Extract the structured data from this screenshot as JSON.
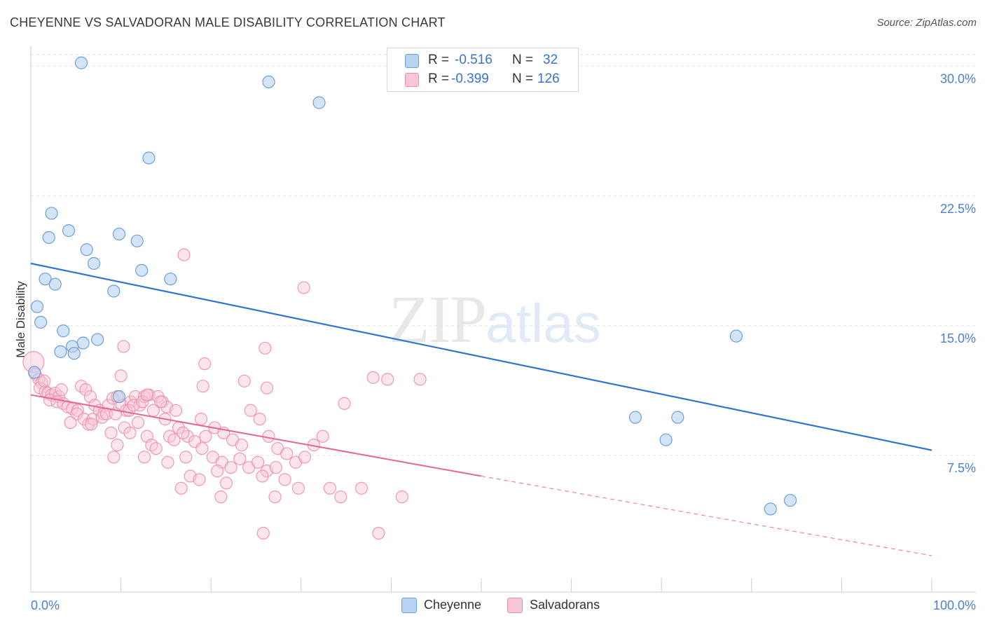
{
  "title": "CHEYENNE VS SALVADORAN MALE DISABILITY CORRELATION CHART",
  "source": "Source: ZipAtlas.com",
  "watermark": {
    "zip": "ZIP",
    "atlas": "atlas"
  },
  "colors": {
    "cheyenne_fill": "#b8d2f2",
    "cheyenne_stroke": "#6d9fd8",
    "cheyenne_line": "#2f74d0",
    "salvadoran_fill": "#f8c6d6",
    "salvadoran_stroke": "#ec8fab",
    "salvadoran_line": "#e8668e",
    "tick_text": "#4a7fd0"
  },
  "legend": {
    "rows": [
      {
        "r_label": "R = ",
        "r_value": "-0.516",
        "n_label": "N = ",
        "n_value": "32"
      },
      {
        "r_label": "R = ",
        "r_value": "-0.399",
        "n_label": "N = ",
        "n_value": "126"
      }
    ]
  },
  "bottom_legend": [
    "Cheyenne",
    "Salvadorans"
  ],
  "chart_data": {
    "type": "scatter",
    "title": "CHEYENNE VS SALVADORAN MALE DISABILITY CORRELATION CHART",
    "xlabel": "",
    "ylabel": "Male Disability",
    "xlim": [
      0,
      100
    ],
    "ylim": [
      0,
      31
    ],
    "x_tick_labels": [
      "0.0%",
      "100.0%"
    ],
    "y_ticks": [
      7.5,
      15.0,
      22.5,
      30.0
    ],
    "y_tick_labels": [
      "7.5%",
      "15.0%",
      "22.5%",
      "30.0%"
    ],
    "grid": "horizontal dashed",
    "legend_placement": "top-center",
    "series": [
      {
        "name": "Cheyenne",
        "r": -0.516,
        "n": 32,
        "trend": {
          "x": [
            0,
            100
          ],
          "y": [
            18.6,
            7.8
          ]
        },
        "points": [
          [
            5.6,
            30.2
          ],
          [
            26.4,
            29.1
          ],
          [
            32.0,
            27.9
          ],
          [
            13.1,
            24.7
          ],
          [
            2.3,
            21.5
          ],
          [
            4.2,
            20.5
          ],
          [
            9.8,
            20.3
          ],
          [
            2.0,
            20.1
          ],
          [
            11.8,
            19.9
          ],
          [
            6.2,
            19.4
          ],
          [
            7.0,
            18.6
          ],
          [
            12.3,
            18.2
          ],
          [
            15.5,
            17.7
          ],
          [
            1.6,
            17.7
          ],
          [
            2.7,
            17.4
          ],
          [
            9.2,
            17.0
          ],
          [
            0.7,
            16.1
          ],
          [
            1.1,
            15.2
          ],
          [
            3.6,
            14.7
          ],
          [
            7.4,
            14.2
          ],
          [
            5.8,
            14.0
          ],
          [
            4.6,
            13.8
          ],
          [
            3.3,
            13.5
          ],
          [
            4.8,
            13.4
          ],
          [
            0.4,
            12.3
          ],
          [
            9.8,
            10.9
          ],
          [
            78.3,
            14.4
          ],
          [
            67.1,
            9.7
          ],
          [
            71.8,
            9.7
          ],
          [
            70.5,
            8.4
          ],
          [
            84.3,
            4.9
          ],
          [
            82.1,
            4.4
          ]
        ]
      },
      {
        "name": "Salvadorans",
        "r": -0.399,
        "n": 126,
        "trend": {
          "x": [
            0,
            50
          ],
          "y": [
            11.0,
            6.3
          ]
        },
        "trend_dashed": {
          "x": [
            50,
            100
          ],
          "y": [
            6.3,
            1.7
          ]
        },
        "points": [
          [
            0.3,
            12.9
          ],
          [
            0.5,
            12.2
          ],
          [
            0.9,
            11.9
          ],
          [
            1.2,
            11.7
          ],
          [
            1.0,
            11.4
          ],
          [
            1.6,
            11.2
          ],
          [
            1.9,
            11.1
          ],
          [
            2.3,
            11.0
          ],
          [
            2.7,
            11.1
          ],
          [
            3.1,
            10.9
          ],
          [
            1.5,
            11.8
          ],
          [
            2.1,
            10.7
          ],
          [
            2.9,
            10.6
          ],
          [
            3.6,
            10.5
          ],
          [
            4.1,
            10.3
          ],
          [
            4.6,
            10.2
          ],
          [
            3.4,
            11.3
          ],
          [
            5.2,
            10.1
          ],
          [
            5.6,
            11.5
          ],
          [
            6.1,
            11.3
          ],
          [
            6.6,
            10.9
          ],
          [
            7.1,
            10.4
          ],
          [
            7.6,
            10.1
          ],
          [
            8.1,
            9.9
          ],
          [
            8.6,
            10.4
          ],
          [
            9.1,
            10.8
          ],
          [
            9.6,
            10.9
          ],
          [
            10.1,
            10.4
          ],
          [
            10.6,
            10.1
          ],
          [
            11.1,
            10.6
          ],
          [
            11.6,
            10.9
          ],
          [
            12.1,
            10.4
          ],
          [
            12.6,
            10.9
          ],
          [
            13.1,
            11.0
          ],
          [
            14.1,
            10.9
          ],
          [
            14.6,
            10.6
          ],
          [
            15.1,
            10.3
          ],
          [
            16.1,
            10.1
          ],
          [
            5.1,
            9.9
          ],
          [
            5.9,
            9.6
          ],
          [
            6.4,
            9.3
          ],
          [
            6.9,
            9.6
          ],
          [
            7.9,
            9.7
          ],
          [
            8.4,
            9.9
          ],
          [
            9.4,
            9.9
          ],
          [
            10.9,
            10.1
          ],
          [
            11.4,
            10.4
          ],
          [
            12.4,
            10.6
          ],
          [
            13.6,
            10.1
          ],
          [
            14.4,
            10.6
          ],
          [
            4.4,
            9.4
          ],
          [
            6.7,
            9.3
          ],
          [
            8.9,
            8.8
          ],
          [
            10.4,
            9.1
          ],
          [
            11.9,
            9.4
          ],
          [
            12.9,
            8.6
          ],
          [
            14.9,
            9.6
          ],
          [
            15.4,
            8.6
          ],
          [
            16.4,
            9.1
          ],
          [
            17.4,
            8.6
          ],
          [
            9.6,
            8.1
          ],
          [
            11.0,
            8.8
          ],
          [
            13.4,
            8.1
          ],
          [
            15.9,
            8.4
          ],
          [
            16.9,
            8.8
          ],
          [
            18.9,
            9.6
          ],
          [
            19.4,
            8.6
          ],
          [
            20.4,
            9.1
          ],
          [
            21.4,
            8.8
          ],
          [
            22.4,
            8.4
          ],
          [
            23.4,
            8.1
          ],
          [
            24.4,
            10.1
          ],
          [
            25.4,
            9.6
          ],
          [
            26.4,
            8.6
          ],
          [
            27.4,
            7.9
          ],
          [
            28.4,
            7.6
          ],
          [
            29.4,
            7.1
          ],
          [
            30.4,
            7.4
          ],
          [
            31.4,
            8.1
          ],
          [
            32.4,
            8.6
          ],
          [
            9.2,
            7.4
          ],
          [
            12.6,
            7.4
          ],
          [
            13.9,
            7.9
          ],
          [
            15.2,
            7.1
          ],
          [
            17.2,
            7.4
          ],
          [
            18.2,
            8.3
          ],
          [
            19.0,
            7.9
          ],
          [
            20.2,
            7.4
          ],
          [
            21.2,
            7.1
          ],
          [
            22.2,
            6.8
          ],
          [
            23.2,
            7.3
          ],
          [
            24.2,
            6.8
          ],
          [
            25.2,
            7.1
          ],
          [
            26.2,
            6.6
          ],
          [
            27.2,
            6.8
          ],
          [
            17.7,
            6.3
          ],
          [
            18.7,
            6.1
          ],
          [
            20.7,
            6.6
          ],
          [
            21.7,
            5.9
          ],
          [
            25.7,
            6.3
          ],
          [
            28.2,
            6.1
          ],
          [
            29.7,
            5.6
          ],
          [
            33.2,
            5.6
          ],
          [
            34.4,
            5.1
          ],
          [
            16.7,
            5.6
          ],
          [
            21.1,
            5.1
          ],
          [
            27.1,
            5.1
          ],
          [
            36.7,
            5.6
          ],
          [
            41.2,
            5.1
          ],
          [
            25.8,
            3.0
          ],
          [
            38.6,
            3.0
          ],
          [
            17.0,
            19.1
          ],
          [
            30.3,
            17.2
          ],
          [
            10.3,
            13.8
          ],
          [
            26.0,
            13.7
          ],
          [
            19.3,
            12.8
          ],
          [
            10.0,
            12.1
          ],
          [
            26.2,
            11.4
          ],
          [
            23.7,
            11.8
          ],
          [
            38.0,
            12.0
          ],
          [
            39.6,
            11.9
          ],
          [
            43.2,
            11.9
          ],
          [
            19.1,
            11.5
          ],
          [
            12.9,
            11.0
          ],
          [
            34.8,
            10.5
          ]
        ]
      }
    ]
  }
}
